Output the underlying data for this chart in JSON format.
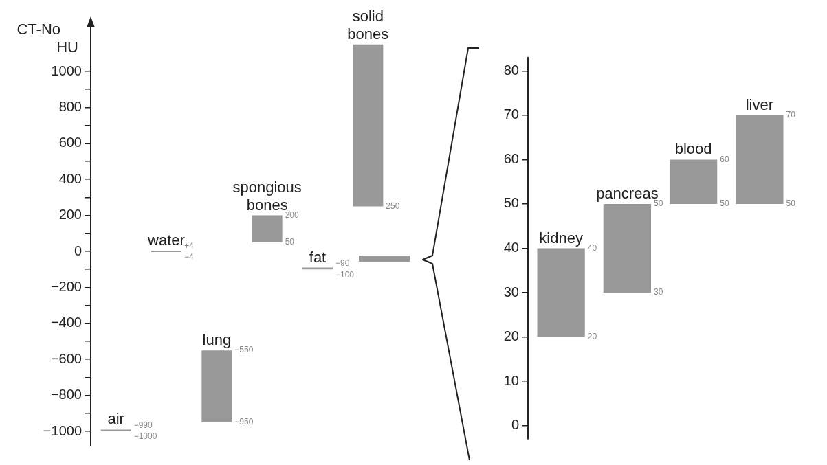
{
  "chart_data": [
    {
      "type": "bar",
      "ylabel": "CT-No\nHU",
      "categories": [
        "air",
        "water",
        "lung",
        "spongious bones",
        "fat",
        "solid bones"
      ],
      "series": [
        {
          "color": "#999999",
          "base": [
            -1000,
            -4,
            -950,
            50,
            -100,
            250
          ],
          "values": [
            10,
            8,
            400,
            150,
            10,
            900
          ]
        }
      ],
      "annotations": [
        "−990",
        "−1000",
        "+4",
        "−4",
        "−550",
        "−950",
        "200",
        "50",
        "−90",
        "−100",
        "250"
      ],
      "ylim": [
        -1080,
        1290
      ],
      "yticks": [
        {
          "value": -1000,
          "label": "−1000"
        },
        {
          "value": -900,
          "label": null
        },
        {
          "value": -800,
          "label": "−800"
        },
        {
          "value": -700,
          "label": null
        },
        {
          "value": -600,
          "label": "−600"
        },
        {
          "value": -500,
          "label": null
        },
        {
          "value": -400,
          "label": "−400"
        },
        {
          "value": -300,
          "label": null
        },
        {
          "value": -200,
          "label": "−200"
        },
        {
          "value": -100,
          "label": null
        },
        0,
        {
          "value": 100,
          "label": null
        },
        200,
        {
          "value": 300,
          "label": null
        },
        400,
        {
          "value": 500,
          "label": null
        },
        600,
        {
          "value": 700,
          "label": null
        },
        800,
        {
          "value": 900,
          "label": null
        },
        1000
      ]
    },
    {
      "type": "bar",
      "categories": [
        "kidney",
        "pancreas",
        "blood",
        "liver"
      ],
      "series": [
        {
          "color": "#999999",
          "base": [
            20,
            30,
            50,
            50
          ],
          "values": [
            20,
            20,
            10,
            20
          ]
        }
      ],
      "annotations": [
        "40",
        "20",
        "50",
        "30",
        "60",
        "50",
        "70",
        "50"
      ],
      "ylim": [
        -3,
        83
      ],
      "yticks": [
        0,
        10,
        20,
        30,
        40,
        50,
        60,
        70,
        80
      ]
    }
  ]
}
